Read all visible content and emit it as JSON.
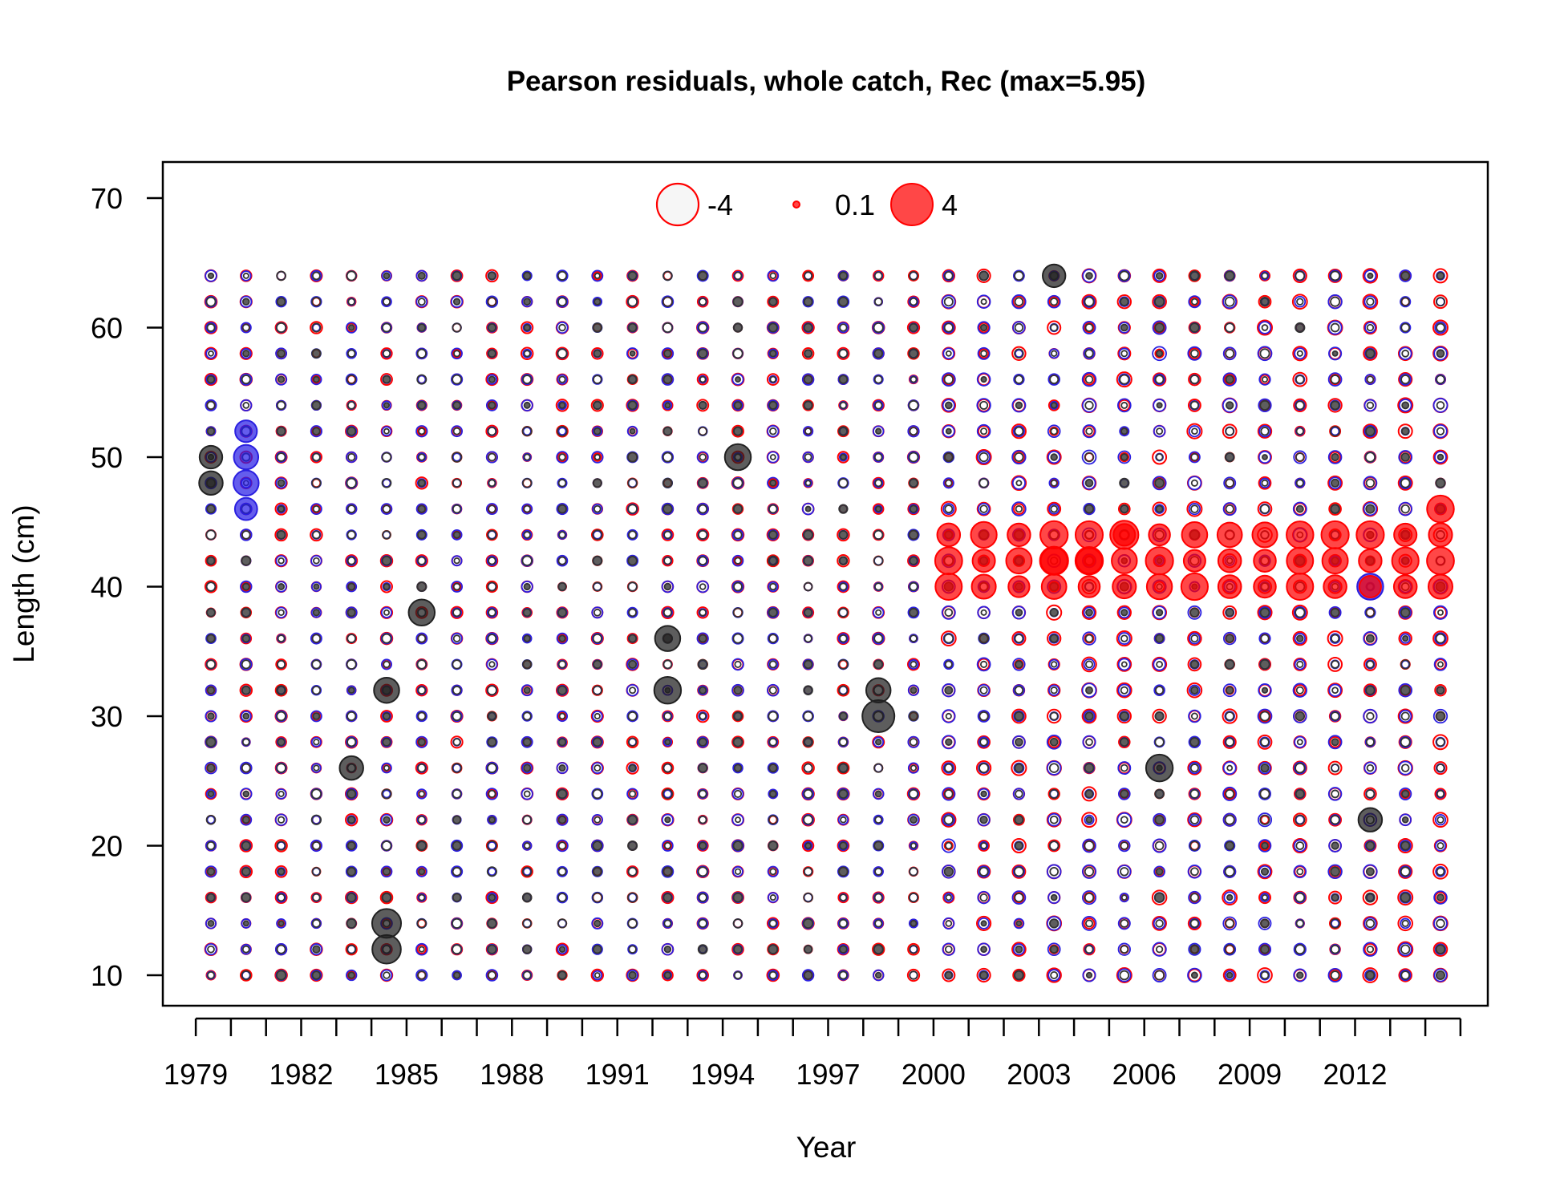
{
  "chart_data": {
    "type": "bubble",
    "title": "Pearson residuals, whole catch, Rec (max=5.95)",
    "xlabel": "Year",
    "ylabel": "Length (cm)",
    "xlim": [
      1978,
      2015
    ],
    "ylim": [
      7.5,
      72
    ],
    "xticks": [
      1979,
      1982,
      1985,
      1988,
      1991,
      1994,
      1997,
      2000,
      2003,
      2006,
      2009,
      2012
    ],
    "yticks": [
      10,
      20,
      30,
      40,
      50,
      60,
      70
    ],
    "years": [
      1979,
      1980,
      1981,
      1982,
      1983,
      1984,
      1985,
      1986,
      1987,
      1988,
      1989,
      1990,
      1991,
      1992,
      1993,
      1994,
      1995,
      1996,
      1997,
      1998,
      1999,
      2000,
      2001,
      2002,
      2003,
      2004,
      2005,
      2006,
      2007,
      2008,
      2009,
      2010,
      2011,
      2012,
      2013,
      2014
    ],
    "length_bins": [
      10,
      12,
      14,
      16,
      18,
      20,
      22,
      24,
      26,
      28,
      30,
      32,
      34,
      36,
      38,
      40,
      42,
      44,
      46,
      48,
      50,
      52,
      54,
      56,
      58,
      60,
      62,
      64
    ],
    "legend": {
      "placement": "top-center",
      "entries": [
        {
          "label": "-4",
          "value": -4
        },
        {
          "label": "0.1",
          "value": 0.1
        },
        {
          "label": "4",
          "value": 4
        }
      ]
    },
    "colors": {
      "positive_fill": "#ff0000",
      "negative_outline": "#ff0000",
      "overlay_dark": "#333333",
      "overlay_blue": "#2a1fe0"
    },
    "notable_residuals": [
      {
        "year": 1979,
        "length": 48,
        "value": 2.2,
        "series": "dark"
      },
      {
        "year": 1979,
        "length": 50,
        "value": 2.0,
        "series": "dark"
      },
      {
        "year": 1980,
        "length": 48,
        "value": 2.6,
        "series": "blue"
      },
      {
        "year": 1980,
        "length": 50,
        "value": 2.4,
        "series": "blue"
      },
      {
        "year": 1980,
        "length": 52,
        "value": 1.8,
        "series": "blue"
      },
      {
        "year": 1980,
        "length": 46,
        "value": 1.9,
        "series": "blue"
      },
      {
        "year": 1984,
        "length": 12,
        "value": 3.5,
        "series": "dark"
      },
      {
        "year": 1984,
        "length": 14,
        "value": 3.6,
        "series": "dark"
      },
      {
        "year": 1984,
        "length": 32,
        "value": 2.6,
        "series": "dark"
      },
      {
        "year": 1983,
        "length": 26,
        "value": 2.2,
        "series": "dark"
      },
      {
        "year": 1985,
        "length": 38,
        "value": 2.8,
        "series": "dark"
      },
      {
        "year": 1992,
        "length": 32,
        "value": 3.0,
        "series": "dark"
      },
      {
        "year": 1992,
        "length": 36,
        "value": 2.6,
        "series": "dark"
      },
      {
        "year": 1994,
        "length": 50,
        "value": 2.8,
        "series": "dark"
      },
      {
        "year": 1998,
        "length": 30,
        "value": 4.6,
        "series": "dark"
      },
      {
        "year": 1998,
        "length": 32,
        "value": 2.4,
        "series": "dark"
      },
      {
        "year": 2006,
        "length": 26,
        "value": 3.0,
        "series": "dark"
      },
      {
        "year": 2012,
        "length": 22,
        "value": 2.2,
        "series": "dark"
      },
      {
        "year": 2012,
        "length": 40,
        "value": 2.8,
        "series": "blue"
      },
      {
        "year": 2003,
        "length": 64,
        "value": 2.0,
        "series": "dark"
      },
      {
        "year": 2003,
        "length": 42,
        "value": 3.4,
        "series": "red"
      },
      {
        "year": 2004,
        "length": 42,
        "value": 3.2,
        "series": "red"
      },
      {
        "year": 2005,
        "length": 44,
        "value": 3.4,
        "series": "red"
      },
      {
        "year": 2014,
        "length": 46,
        "value": 3.0,
        "series": "red"
      }
    ]
  }
}
